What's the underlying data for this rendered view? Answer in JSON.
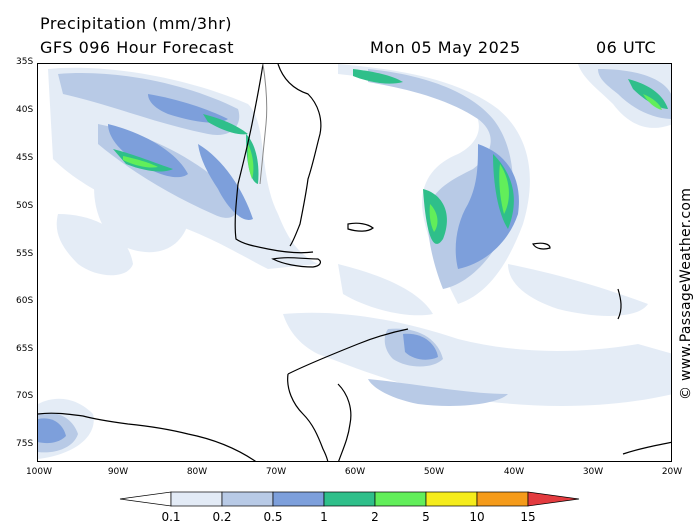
{
  "header": {
    "title": "Precipitation (mm/3hr)",
    "subtitle": "GFS 096 Hour Forecast",
    "date": "Mon 05 May 2025",
    "time": "06 UTC"
  },
  "credit": "© www.PassageWeather.com",
  "lat_labels": [
    "35S",
    "40S",
    "45S",
    "50S",
    "55S",
    "60S",
    "65S",
    "70S",
    "75S"
  ],
  "lon_labels": [
    "100W",
    "90W",
    "80W",
    "70W",
    "60W",
    "50W",
    "40W",
    "30W",
    "20W"
  ],
  "legend": {
    "levels": [
      "0.1",
      "0.2",
      "0.5",
      "1",
      "2",
      "5",
      "10",
      "15"
    ],
    "colors": [
      "#ffffff",
      "#e3ebf6",
      "#b8cae6",
      "#7d9fdb",
      "#2fbf8a",
      "#62ee5a",
      "#f5ec1c",
      "#f59b1a",
      "#e33b3f"
    ]
  },
  "map": {
    "land_color": "#ffffff",
    "coast_color": "#000000",
    "border_color": "#888888"
  }
}
